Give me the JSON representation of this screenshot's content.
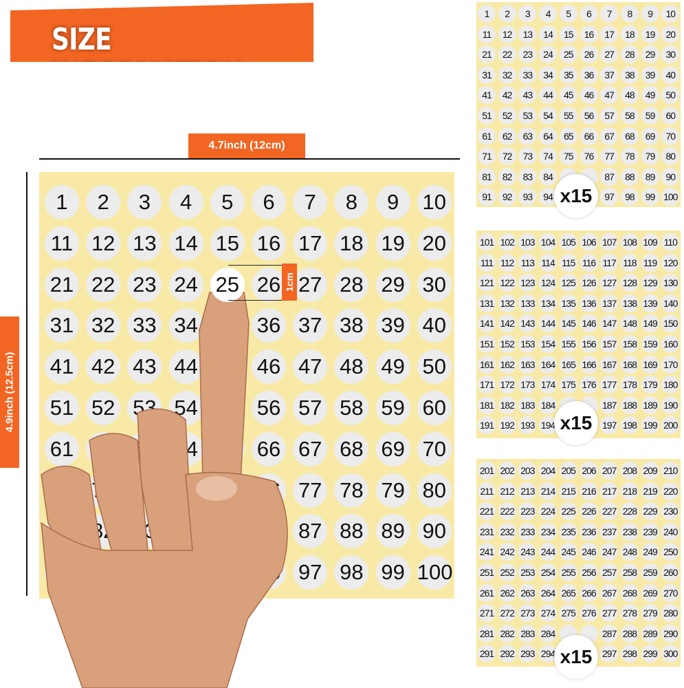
{
  "header": {
    "title": "SIZE INFORMATION"
  },
  "dimensions": {
    "width_label": "4.7inch (12cm)",
    "height_label": "4.9inch (12.5cm)",
    "sticker_size_label": "1cm"
  },
  "main_sheet": {
    "start": 1,
    "end": 100,
    "highlighted": 25
  },
  "packs": [
    {
      "start": 1,
      "end": 100,
      "quantity": "x15"
    },
    {
      "start": 101,
      "end": 200,
      "quantity": "x15"
    },
    {
      "start": 201,
      "end": 300,
      "quantity": "x15"
    }
  ],
  "colors": {
    "accent": "#f26522",
    "sheet": "#f8eaa6",
    "sticker": "#ececec",
    "skin": "#d9a07c"
  }
}
